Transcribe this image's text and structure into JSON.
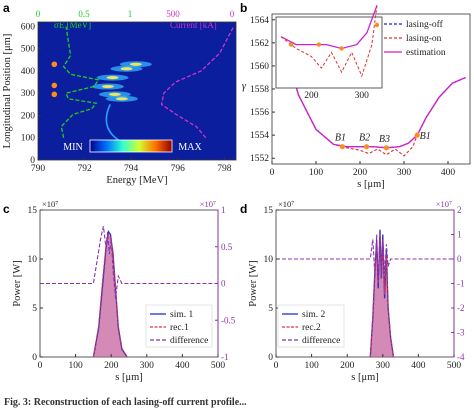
{
  "figure": {
    "caption": "Fig. 3: Reconstruction of each lasing-off current profile...",
    "panels": [
      "a",
      "b",
      "c",
      "d"
    ]
  },
  "chart_data": [
    {
      "panel": "a",
      "type": "heatmap",
      "xlabel": "Energy [MeV]",
      "ylabel": "Longitudinal Position [μm]",
      "xlim": [
        790,
        798.5
      ],
      "xticks": [
        "790",
        "792",
        "794",
        "796",
        "798"
      ],
      "ylim": [
        0,
        620
      ],
      "yticks": [
        "0",
        "100",
        "200",
        "300",
        "400",
        "500",
        "600"
      ],
      "top_ticks": [
        "0",
        "0.5",
        "1",
        "500",
        "0"
      ],
      "colorbar": {
        "min_label": "MIN",
        "max_label": "MAX"
      },
      "series": [
        {
          "name": "σE [MeV]",
          "color": "#22cc22",
          "style": "dashed",
          "values": [
            [
              791.1,
              100
            ],
            [
              791.0,
              150
            ],
            [
              791.5,
              205
            ],
            [
              792.3,
              230
            ],
            [
              792.5,
              255
            ],
            [
              791.3,
              275
            ],
            [
              791.2,
              300
            ],
            [
              792.4,
              330
            ],
            [
              792.6,
              360
            ],
            [
              791.4,
              385
            ],
            [
              791.1,
              420
            ],
            [
              791.4,
              470
            ],
            [
              791.2,
              600
            ]
          ]
        },
        {
          "name": "Current",
          "unit": "kA",
          "color": "#cc33cc",
          "style": "dashed",
          "values": [
            [
              797.2,
              100
            ],
            [
              796.8,
              150
            ],
            [
              796.0,
              200
            ],
            [
              795.3,
              250
            ],
            [
              795.4,
              300
            ],
            [
              795.9,
              350
            ],
            [
              797.0,
              400
            ],
            [
              797.8,
              480
            ],
            [
              798.2,
              560
            ],
            [
              798.4,
              600
            ]
          ]
        }
      ],
      "markers": {
        "color": "#ff8c1a",
        "points": [
          [
            790.7,
            295
          ],
          [
            790.7,
            335
          ],
          [
            790.7,
            430
          ]
        ]
      },
      "heat_spots": [
        [
          793.2,
          370
        ],
        [
          793.0,
          330
        ],
        [
          793.3,
          295
        ],
        [
          793.6,
          275
        ],
        [
          793.8,
          410
        ],
        [
          794.2,
          430
        ]
      ]
    },
    {
      "panel": "b",
      "type": "line",
      "xlabel": "s [μm]",
      "ylabel": "γ",
      "xlim": [
        0,
        450
      ],
      "xticks": [
        "0",
        "100",
        "200",
        "300",
        "400"
      ],
      "ylim": [
        1551.5,
        1564.5
      ],
      "yticks": [
        "1552",
        "1554",
        "1556",
        "1558",
        "1560",
        "1562",
        "1564"
      ],
      "legend": {
        "position": "top-right"
      },
      "series": [
        {
          "name": "lasing-off",
          "color": "#2222cc",
          "style": "dashed",
          "x": [
            10,
            30,
            60,
            100,
            140,
            170,
            200,
            230,
            260,
            290,
            310,
            330,
            350,
            380,
            410,
            440
          ],
          "y": [
            1564.2,
            1561.5,
            1557.5,
            1554.5,
            1553.2,
            1553.0,
            1553.0,
            1553.0,
            1552.9,
            1553.0,
            1553.3,
            1554.0,
            1555.5,
            1557.3,
            1558.5,
            1559.0
          ]
        },
        {
          "name": "lasing-on",
          "color": "#dd3333",
          "style": "dashed",
          "x": [
            10,
            30,
            60,
            100,
            140,
            170,
            200,
            220,
            240,
            260,
            280,
            300,
            320,
            330,
            350,
            380,
            410,
            440
          ],
          "y": [
            1564.2,
            1561.5,
            1557.5,
            1554.5,
            1553.2,
            1552.9,
            1552.7,
            1552.4,
            1552.8,
            1552.3,
            1552.8,
            1552.2,
            1553.0,
            1554.0,
            1555.5,
            1557.3,
            1558.5,
            1559.0
          ]
        },
        {
          "name": "estimation",
          "color": "#cc22cc",
          "style": "solid",
          "x": [
            10,
            30,
            60,
            100,
            140,
            170,
            200,
            230,
            260,
            290,
            310,
            330,
            350,
            380,
            410,
            440
          ],
          "y": [
            1564.2,
            1561.5,
            1557.5,
            1554.5,
            1553.2,
            1553.0,
            1553.0,
            1553.0,
            1552.9,
            1553.0,
            1553.3,
            1554.0,
            1555.5,
            1557.3,
            1558.5,
            1559.0
          ]
        }
      ],
      "annotations": [
        "B1",
        "B2",
        "B3",
        "B1"
      ],
      "inset": {
        "xticks": [
          "200",
          "300"
        ],
        "yticks": [
          "1560",
          "1562"
        ]
      }
    },
    {
      "panel": "c",
      "type": "area",
      "xlabel": "s [μm]",
      "ylabel": "Power [W]",
      "xlim": [
        0,
        500
      ],
      "xticks": [
        "0",
        "100",
        "200",
        "300",
        "400",
        "500"
      ],
      "ylim": [
        0,
        15
      ],
      "yticks": [
        "0",
        "5",
        "10",
        "15"
      ],
      "y_exponent": "×10⁷",
      "y2lim": [
        -1,
        1
      ],
      "y2ticks": [
        "-1",
        "-0.5",
        "0",
        "0.5",
        "1"
      ],
      "y2_exponent": "×10⁷",
      "legend": {
        "position": "bottom-right"
      },
      "series": [
        {
          "name": "sim. 1",
          "color": "#2233cc",
          "x": [
            150,
            165,
            175,
            185,
            192,
            198,
            205,
            212,
            220,
            230,
            245
          ],
          "y": [
            0,
            3,
            7,
            11,
            12.8,
            12.5,
            10.5,
            7,
            3,
            0.8,
            0
          ]
        },
        {
          "name": "rec.1",
          "color": "#dd3344",
          "x": [
            150,
            165,
            175,
            185,
            192,
            198,
            205,
            212,
            220,
            230,
            245
          ],
          "y": [
            0,
            3.2,
            7.5,
            11.3,
            12.5,
            12.2,
            10.8,
            7.2,
            3.2,
            0.9,
            0
          ]
        },
        {
          "name": "difference",
          "color": "#8833aa",
          "style": "dashed",
          "x": [
            0,
            150,
            160,
            170,
            178,
            185,
            190,
            195,
            200,
            205,
            212,
            220,
            230,
            500
          ],
          "y2": [
            0,
            0,
            0.3,
            0.6,
            0.78,
            0.5,
            0.7,
            0.4,
            0.6,
            0.2,
            -0.2,
            0.1,
            0,
            0
          ]
        }
      ]
    },
    {
      "panel": "d",
      "type": "area",
      "xlabel": "s [μm]",
      "ylabel": "Power [W]",
      "xlim": [
        0,
        500
      ],
      "xticks": [
        "0",
        "100",
        "200",
        "300",
        "400",
        "500"
      ],
      "ylim": [
        0,
        15
      ],
      "yticks": [
        "0",
        "5",
        "10",
        "15"
      ],
      "y_exponent": "×10⁷",
      "y2lim": [
        -4,
        2
      ],
      "y2ticks": [
        "-4",
        "-3",
        "-2",
        "-1",
        "0",
        "1",
        "2"
      ],
      "y2_exponent": "×10⁷",
      "legend": {
        "position": "bottom-left"
      },
      "series": [
        {
          "name": "sim. 2",
          "color": "#2233cc",
          "x": [
            265,
            272,
            278,
            283,
            287,
            292,
            296,
            300,
            305,
            310,
            315,
            322,
            330
          ],
          "y": [
            0,
            4,
            9,
            12,
            7,
            13,
            8,
            12.5,
            6,
            11,
            5,
            2,
            0
          ]
        },
        {
          "name": "rec.2",
          "color": "#dd3344",
          "x": [
            265,
            272,
            278,
            283,
            287,
            292,
            296,
            300,
            305,
            310,
            315,
            322,
            330
          ],
          "y": [
            0,
            4.2,
            9.2,
            11.5,
            7.5,
            12.6,
            8.3,
            12,
            6.4,
            10.5,
            5.3,
            2.1,
            0
          ]
        },
        {
          "name": "difference",
          "color": "#8833aa",
          "style": "dashed",
          "x": [
            0,
            265,
            272,
            278,
            283,
            287,
            292,
            296,
            300,
            305,
            310,
            315,
            322,
            500
          ],
          "y2": [
            0,
            0,
            0.8,
            -0.7,
            1.0,
            -0.9,
            0.9,
            -0.8,
            0.8,
            -0.6,
            0.6,
            -0.3,
            0,
            0
          ]
        }
      ]
    }
  ]
}
